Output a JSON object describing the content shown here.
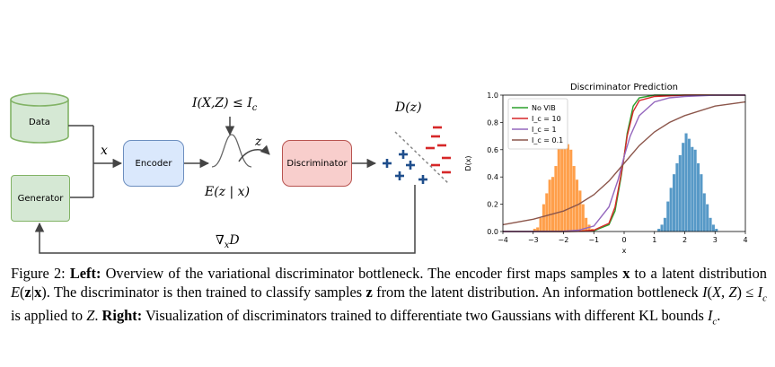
{
  "diagram": {
    "data_label": "Data",
    "generator_label": "Generator",
    "encoder_label": "Encoder",
    "discriminator_label": "Discriminator",
    "x_label": "x",
    "z_label": "z",
    "constraint_label": "I(X,Z) ≤ I_c",
    "posterior_label": "E(z | x)",
    "dz_label": "D(z)",
    "grad_label": "∇_x D"
  },
  "caption": {
    "prefix": "Figure 2: ",
    "left_bold": "Left:",
    "left_text": " Overview of the variational discriminator bottleneck. The encoder first maps samples x to a latent distribution E(z|x). The discriminator is then trained to classify samples z from the latent distribution. An information bottleneck I(X, Z) ≤ I_c is applied to Z. ",
    "right_bold": "Right:",
    "right_text": " Visualization of discriminators trained to differentiate two Gaussians with different KL bounds I_c."
  },
  "chart_data": {
    "type": "line",
    "title": "Discriminator Prediction",
    "xlabel": "x",
    "ylabel": "D(x)",
    "xlim": [
      -4,
      4
    ],
    "ylim": [
      0.0,
      1.0
    ],
    "xticks": [
      -4,
      -3,
      -2,
      -1,
      0,
      1,
      2,
      3,
      4
    ],
    "yticks": [
      0.0,
      0.2,
      0.4,
      0.6,
      0.8,
      1.0
    ],
    "legend_position": "top-left",
    "series": [
      {
        "name": "No VIB",
        "color": "#2ca02c",
        "x": [
          -4,
          -3,
          -2,
          -1.5,
          -1,
          -0.5,
          -0.3,
          -0.1,
          0,
          0.1,
          0.3,
          0.5,
          1,
          2,
          4
        ],
        "y": [
          0,
          0,
          0,
          0.001,
          0.005,
          0.05,
          0.15,
          0.4,
          0.55,
          0.72,
          0.92,
          0.98,
          1,
          1,
          1
        ]
      },
      {
        "name": "I_c = 10",
        "color": "#d62728",
        "x": [
          -4,
          -3,
          -2,
          -1.5,
          -1,
          -0.5,
          -0.3,
          -0.1,
          0,
          0.1,
          0.3,
          0.5,
          1,
          2,
          4
        ],
        "y": [
          0,
          0,
          0,
          0.001,
          0.01,
          0.06,
          0.18,
          0.42,
          0.55,
          0.7,
          0.88,
          0.96,
          0.99,
          1,
          1
        ]
      },
      {
        "name": "I_c = 1",
        "color": "#9467bd",
        "x": [
          -4,
          -3,
          -2,
          -1.5,
          -1,
          -0.5,
          -0.2,
          0,
          0.2,
          0.5,
          1,
          1.5,
          2,
          3,
          4
        ],
        "y": [
          0,
          0,
          0.002,
          0.01,
          0.04,
          0.18,
          0.38,
          0.55,
          0.7,
          0.85,
          0.95,
          0.98,
          0.99,
          1,
          1
        ]
      },
      {
        "name": "I_c = 0.1",
        "color": "#8c564b",
        "x": [
          -4,
          -3,
          -2,
          -1.5,
          -1,
          -0.5,
          0,
          0.5,
          1,
          1.5,
          2,
          3,
          4
        ],
        "y": [
          0.05,
          0.09,
          0.15,
          0.2,
          0.27,
          0.37,
          0.5,
          0.63,
          0.73,
          0.8,
          0.85,
          0.92,
          0.95
        ]
      }
    ],
    "histograms": [
      {
        "name": "left",
        "color": "#ff7f0e",
        "bins": [
          -3.0,
          -2.9,
          -2.8,
          -2.7,
          -2.6,
          -2.5,
          -2.4,
          -2.3,
          -2.2,
          -2.1,
          -2.0,
          -1.9,
          -1.8,
          -1.7,
          -1.6,
          -1.5,
          -1.4,
          -1.3,
          -1.2,
          -1.1
        ],
        "heights": [
          0.02,
          0.03,
          0.1,
          0.2,
          0.28,
          0.38,
          0.4,
          0.48,
          0.62,
          0.68,
          0.72,
          0.64,
          0.6,
          0.48,
          0.38,
          0.3,
          0.2,
          0.1,
          0.05,
          0.02
        ]
      },
      {
        "name": "right",
        "color": "#1f77b4",
        "bins": [
          1.1,
          1.2,
          1.3,
          1.4,
          1.5,
          1.6,
          1.7,
          1.8,
          1.9,
          2.0,
          2.1,
          2.2,
          2.3,
          2.4,
          2.5,
          2.6,
          2.7,
          2.8,
          2.9,
          3.0
        ],
        "heights": [
          0.02,
          0.05,
          0.1,
          0.22,
          0.32,
          0.42,
          0.5,
          0.56,
          0.65,
          0.72,
          0.68,
          0.62,
          0.6,
          0.5,
          0.42,
          0.28,
          0.2,
          0.1,
          0.05,
          0.02
        ]
      }
    ]
  }
}
